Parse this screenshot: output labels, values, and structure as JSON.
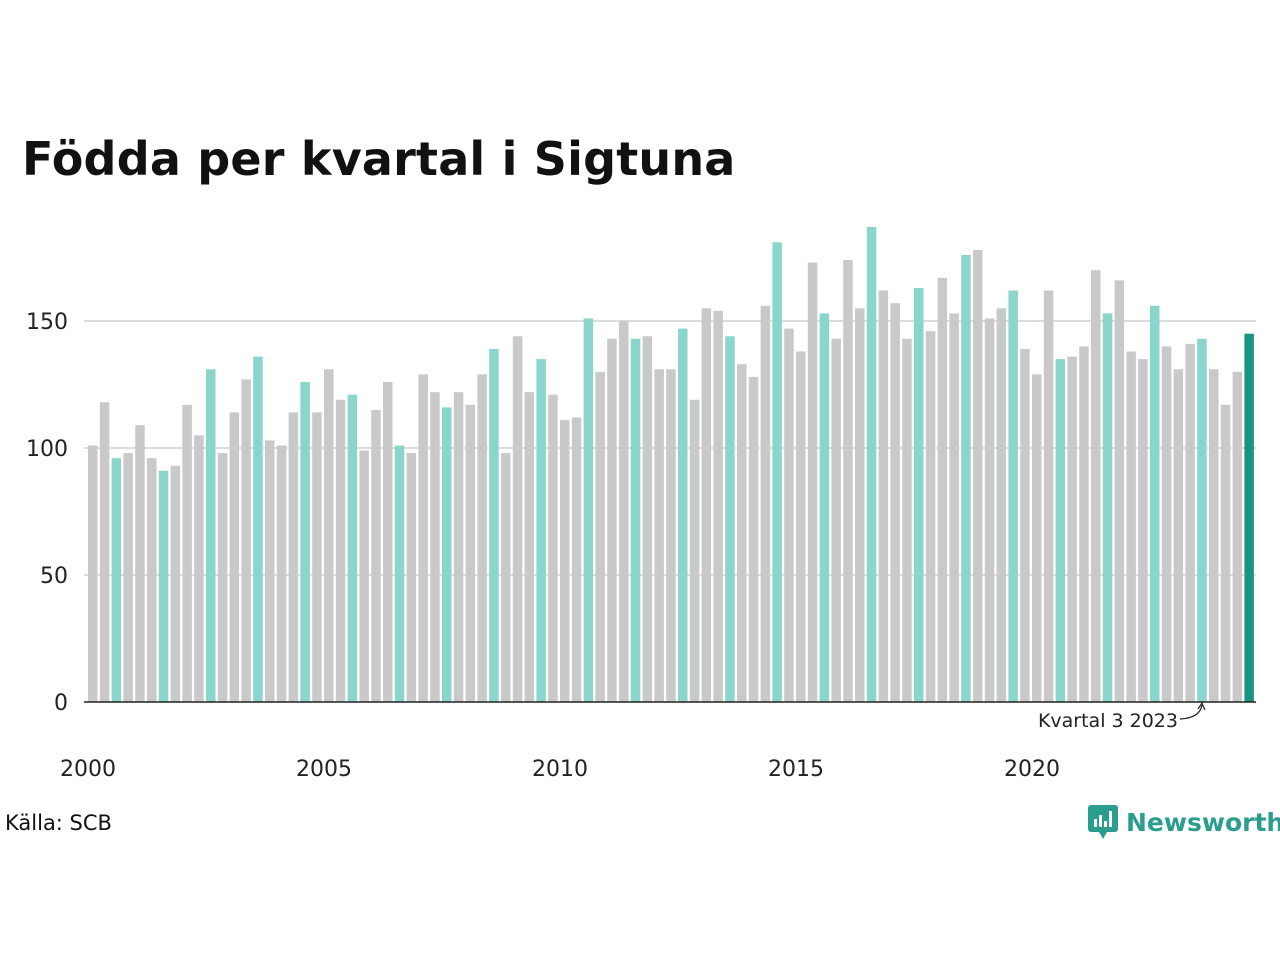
{
  "title": "Födda per kvartal i Sigtuna",
  "source": "Källa: SCB",
  "brand": "Newsworthy",
  "colors": {
    "highlight": "#8bd6cc",
    "latest": "#1a9384",
    "other": "#c9c9c9",
    "brand": "#2a9d8f"
  },
  "chart_data": {
    "type": "bar",
    "title": "Födda per kvartal i Sigtuna",
    "xlabel": "",
    "ylabel": "",
    "ylim": [
      0,
      190
    ],
    "yticks": [
      0,
      50,
      100,
      150
    ],
    "x_tick_labels": [
      {
        "year": 2000,
        "label": "2000"
      },
      {
        "year": 2005,
        "label": "2005"
      },
      {
        "year": 2010,
        "label": "2010"
      },
      {
        "year": 2015,
        "label": "2015"
      },
      {
        "year": 2020,
        "label": "2020"
      }
    ],
    "start_year": 2000,
    "highlight_quarter": 3,
    "grid": true,
    "annotation": {
      "text": "Kvartal 3 2023",
      "year": 2023,
      "quarter": 3
    },
    "values": [
      101,
      118,
      96,
      98,
      109,
      96,
      91,
      93,
      117,
      105,
      131,
      98,
      114,
      127,
      136,
      103,
      101,
      114,
      126,
      114,
      131,
      119,
      121,
      99,
      115,
      126,
      101,
      98,
      129,
      122,
      116,
      122,
      117,
      129,
      139,
      98,
      144,
      122,
      135,
      121,
      111,
      112,
      151,
      130,
      143,
      150,
      143,
      144,
      131,
      131,
      147,
      119,
      155,
      154,
      144,
      133,
      128,
      156,
      181,
      147,
      138,
      173,
      153,
      143,
      174,
      155,
      187,
      162,
      157,
      143,
      163,
      146,
      167,
      153,
      176,
      178,
      151,
      155,
      162,
      139,
      129,
      162,
      135,
      136,
      140,
      170,
      153,
      166,
      138,
      135,
      156,
      140,
      131,
      141,
      143,
      131,
      117,
      130,
      145
    ]
  }
}
